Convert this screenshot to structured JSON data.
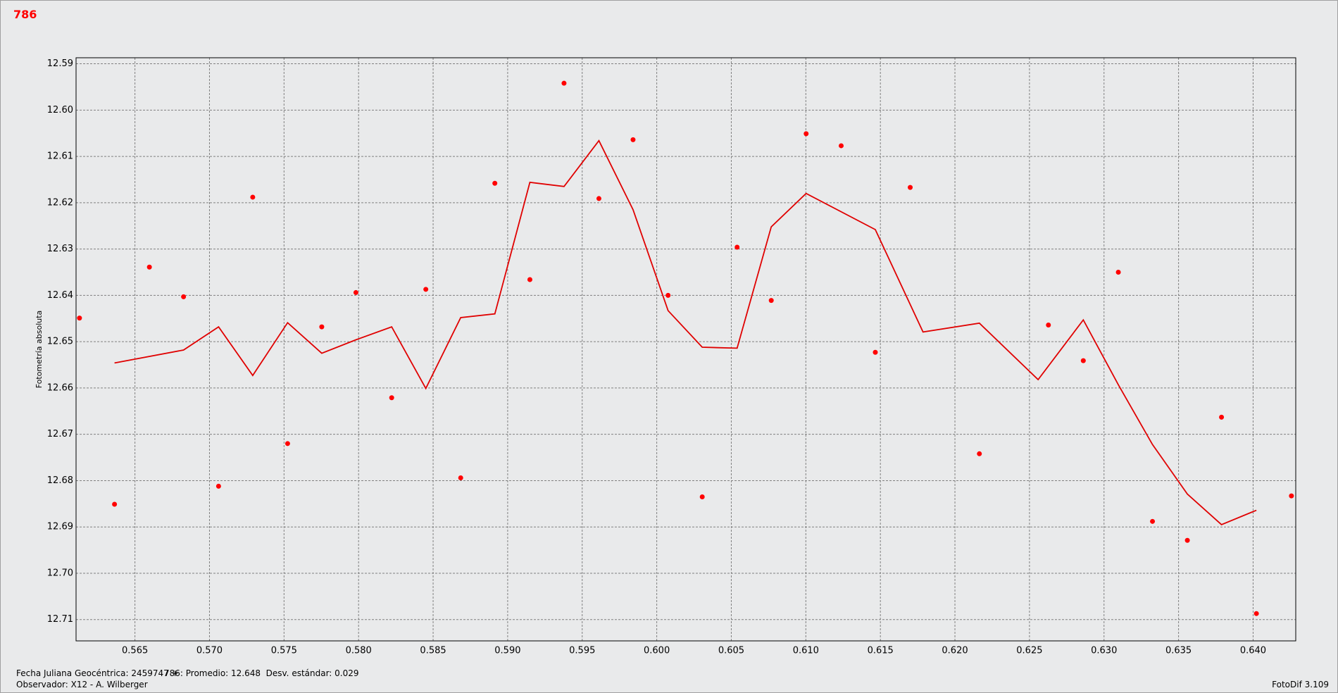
{
  "chart_data": {
    "type": "line",
    "title": "786",
    "y_label": "Fotometría absoluta",
    "xlim": [
      0.56105,
      0.64286
    ],
    "ylim": [
      12.7146,
      12.5887
    ],
    "grid": true,
    "xticks": [
      0.565,
      {
        "value": 0.57,
        "label": "0.570"
      },
      0.575,
      {
        "value": 0.58,
        "label": "0.580"
      },
      0.585,
      {
        "value": 0.59,
        "label": "0.590"
      },
      0.595,
      {
        "value": 0.6,
        "label": "0.600"
      },
      0.605,
      {
        "value": 0.61,
        "label": "0.610"
      },
      0.615,
      {
        "value": 0.62,
        "label": "0.620"
      },
      0.625,
      {
        "value": 0.63,
        "label": "0.630"
      },
      0.635,
      {
        "value": 0.64,
        "label": "0.640"
      }
    ],
    "yticks": [
      12.59,
      {
        "value": 12.6,
        "label": "12.60"
      },
      12.61,
      12.62,
      12.63,
      12.64,
      12.65,
      12.66,
      12.67,
      12.68,
      12.69,
      {
        "value": 12.7,
        "label": "12.70"
      },
      12.71
    ],
    "series": [
      {
        "type": "scatter",
        "color": "#ff0000",
        "x": [
          0.56128,
          0.56363,
          0.56597,
          0.56826,
          0.57061,
          0.5729,
          0.57524,
          0.57753,
          0.57982,
          0.58222,
          0.58451,
          0.58685,
          0.58914,
          0.59149,
          0.59378,
          0.59612,
          0.59841,
          0.60076,
          0.60305,
          0.60539,
          0.60768,
          0.61002,
          0.61237,
          0.61466,
          0.617,
          0.62164,
          0.62627,
          0.62861,
          0.63096,
          0.63325,
          0.63559,
          0.63788,
          0.64022,
          0.64257
        ],
        "values": [
          12.6449,
          12.6851,
          12.6339,
          12.6403,
          12.6812,
          12.6188,
          12.672,
          12.6468,
          12.6394,
          12.6621,
          12.6387,
          12.6794,
          12.6158,
          12.6366,
          12.5942,
          12.6191,
          12.6064,
          12.64,
          12.6835,
          12.6296,
          12.6411,
          12.6051,
          12.6077,
          12.6523,
          12.6167,
          12.6742,
          12.6464,
          12.6541,
          12.635,
          12.6888,
          12.6929,
          12.6663,
          12.7087,
          12.6833
        ]
      },
      {
        "type": "line",
        "color": "#e00000",
        "x": [
          0.56363,
          0.56826,
          0.57061,
          0.5729,
          0.57524,
          0.57753,
          0.57982,
          0.58222,
          0.58451,
          0.58685,
          0.58914,
          0.59149,
          0.59378,
          0.59612,
          0.59841,
          0.60076,
          0.60305,
          0.60539,
          0.60768,
          0.61002,
          0.61466,
          0.61786,
          0.62164,
          0.62558,
          0.62861,
          0.63096,
          0.63325,
          0.63559,
          0.63788,
          0.64022
        ],
        "values": [
          12.6546,
          12.6518,
          12.6468,
          12.6573,
          12.6459,
          12.6525,
          12.6496,
          12.6468,
          12.6601,
          12.6448,
          12.644,
          12.6156,
          12.6165,
          12.6066,
          12.6215,
          12.6433,
          12.6512,
          12.6514,
          12.6252,
          12.618,
          12.6258,
          12.6479,
          12.646,
          12.6582,
          12.6453,
          12.6593,
          12.6722,
          12.6829,
          12.6895,
          12.6864
        ]
      }
    ]
  },
  "footer": {
    "date_label": "Fecha Juliana Geocéntrica: 2459747 +",
    "stats": "786: Promedio: 12.648  Desv. estándar: 0.029",
    "observer": "Observador: X12 - A. Wilberger",
    "version": "FotoDif 3.109"
  }
}
